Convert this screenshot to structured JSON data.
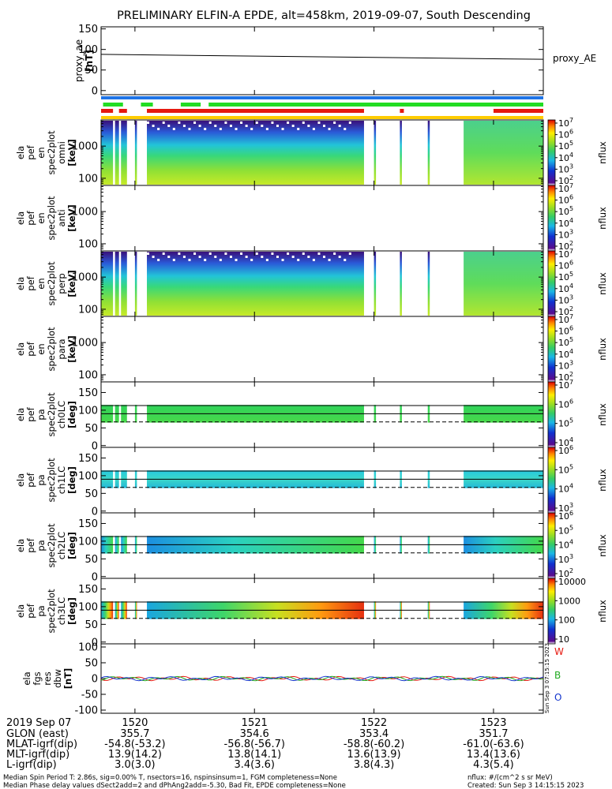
{
  "title": "PRELIMINARY ELFIN-A EPDE, alt=458km, 2019-09-07, South Descending",
  "colors": {
    "blue_bar": "#1f74e6",
    "green_bar": "#22dd22",
    "red_bar": "#e6180f",
    "yellow_bar": "#ffcc00"
  },
  "chart_data": [
    {
      "id": "proxy_ae",
      "type": "line",
      "ylabel": "proxy_ae [nT]",
      "legend": "proxy_AE",
      "ylim": [
        -10,
        155
      ],
      "yticks": [
        "150",
        "100",
        "50",
        "0"
      ],
      "x_time": [
        "19:43",
        "23:25"
      ],
      "y": [
        88,
        76
      ]
    },
    {
      "id": "status_bars",
      "type": "bar",
      "rows": [
        {
          "color": "blue",
          "segments": [
            [
              "19:43",
              "23:25"
            ]
          ]
        },
        {
          "color": "green",
          "segments": [
            [
              "19:44",
              "19:54"
            ],
            [
              "20:03",
              "20:09"
            ],
            [
              "20:23",
              "20:33"
            ],
            [
              "20:37",
              "23:25"
            ]
          ]
        },
        {
          "color": "red",
          "segments": [
            [
              "19:43",
              "19:49"
            ],
            [
              "19:52",
              "19:56"
            ],
            [
              "20:06",
              "21:55"
            ],
            [
              "22:13",
              "22:15"
            ],
            [
              "23:00",
              "23:25"
            ]
          ]
        },
        {
          "color": "yellow",
          "segments": [
            [
              "19:43",
              "23:25"
            ]
          ]
        }
      ]
    },
    {
      "id": "en_spec2plot_omni",
      "type": "heatmap",
      "ylabel": "ela pef en spec2plot omni [keV]",
      "yscale": "log",
      "ylim": [
        60,
        6500
      ],
      "yticks": [
        "1000",
        "100"
      ],
      "zlabel": "nflux",
      "zscale": "log",
      "zticks": [
        "10^7",
        "10^6",
        "10^5",
        "10^4",
        "10^3",
        "10^2"
      ],
      "zlim": [
        100,
        10000000
      ]
    },
    {
      "id": "en_spec2plot_anti",
      "type": "heatmap",
      "ylabel": "ela pef en spec2plot anti [keV]",
      "yscale": "log",
      "ylim": [
        60,
        6500
      ],
      "yticks": [
        "1000",
        "100"
      ],
      "zlabel": "nflux",
      "zticks": [
        "10^7",
        "10^6",
        "10^5",
        "10^4",
        "10^3",
        "10^2"
      ]
    },
    {
      "id": "en_spec2plot_perp",
      "type": "heatmap",
      "ylabel": "ela pef en spec2plot perp [keV]",
      "yscale": "log",
      "ylim": [
        60,
        6500
      ],
      "yticks": [
        "1000",
        "100"
      ],
      "zlabel": "nflux",
      "zticks": [
        "10^7",
        "10^6",
        "10^5",
        "10^4",
        "10^3",
        "10^2"
      ]
    },
    {
      "id": "en_spec2plot_para",
      "type": "heatmap",
      "ylabel": "ela pef en spec2plot para [keV]",
      "yscale": "log",
      "ylim": [
        60,
        6500
      ],
      "yticks": [
        "1000",
        "100"
      ],
      "zlabel": "nflux",
      "zticks": [
        "10^7",
        "10^6",
        "10^5",
        "10^4",
        "10^3",
        "10^2"
      ]
    },
    {
      "id": "pa_spec2plot_ch0LC",
      "type": "heatmap",
      "ylabel": "ela pef pa spec2plot ch0LC [deg]",
      "ylim": [
        -5,
        180
      ],
      "yticks": [
        "150",
        "100",
        "50",
        "0"
      ],
      "zlabel": "nflux",
      "zticks": [
        "10^7",
        "10^6",
        "10^5",
        "10^4"
      ],
      "band": [
        65,
        115
      ],
      "reference_lines": [
        113,
        90
      ],
      "dashed_line": 67
    },
    {
      "id": "pa_spec2plot_ch1LC",
      "type": "heatmap",
      "ylabel": "ela pef pa spec2plot ch1LC [deg]",
      "ylim": [
        -5,
        180
      ],
      "yticks": [
        "150",
        "100",
        "50",
        "0"
      ],
      "zlabel": "nflux",
      "zticks": [
        "10^6",
        "10^5",
        "10^4",
        "10^3"
      ],
      "band": [
        65,
        115
      ],
      "reference_lines": [
        113,
        90
      ],
      "dashed_line": 67
    },
    {
      "id": "pa_spec2plot_ch2LC",
      "type": "heatmap",
      "ylabel": "ela pef pa spec2plot ch2LC [deg]",
      "ylim": [
        -5,
        180
      ],
      "yticks": [
        "150",
        "100",
        "50",
        "0"
      ],
      "zlabel": "nflux",
      "zticks": [
        "10^6",
        "10^5",
        "10^4",
        "10^3",
        "10^2"
      ],
      "band": [
        65,
        115
      ],
      "reference_lines": [
        113,
        90
      ],
      "dashed_line": 67
    },
    {
      "id": "pa_spec2plot_ch3LC",
      "type": "heatmap",
      "ylabel": "ela pef pa spec2plot ch3LC [deg]",
      "ylim": [
        -5,
        180
      ],
      "yticks": [
        "150",
        "100",
        "50",
        "0"
      ],
      "zlabel": "nflux",
      "zticks": [
        "10000",
        "1000",
        "100",
        "10"
      ],
      "band": [
        65,
        115
      ],
      "reference_lines": [
        113,
        90
      ],
      "dashed_line": 67
    },
    {
      "id": "fgs_res_dbw",
      "type": "line",
      "ylabel": "ela fgs res dbw [nT]",
      "ylim": [
        -110,
        110
      ],
      "yticks": [
        "100",
        "50",
        "0",
        "-50",
        "-100"
      ],
      "legend": [
        "W",
        "B",
        "O"
      ],
      "series": [
        {
          "name": "W",
          "color": "#e6180f"
        },
        {
          "name": "B",
          "color": "#22aa22"
        },
        {
          "name": "O",
          "color": "#1133cc"
        }
      ]
    }
  ],
  "x_axis": {
    "date": "2019 Sep 07",
    "ticks": [
      {
        "t": "20:00",
        "label": "1520"
      },
      {
        "t": "21:00",
        "label": "1521"
      },
      {
        "t": "22:00",
        "label": "1522"
      },
      {
        "t": "23:00",
        "label": "1523"
      }
    ],
    "rows": [
      {
        "label": "GLON (east)",
        "values": [
          "355.7",
          "354.6",
          "353.4",
          "351.7"
        ]
      },
      {
        "label": "MLAT-igrf(dip)",
        "values": [
          "-54.8(-53.2)",
          "-56.8(-56.7)",
          "-58.8(-60.2)",
          "-61.0(-63.6)"
        ]
      },
      {
        "label": "MLT-igrf(dip)",
        "values": [
          "13.9(14.2)",
          "13.8(14.1)",
          "13.6(13.9)",
          "13.4(13.6)"
        ]
      },
      {
        "label": "L-igrf(dip)",
        "values": [
          "3.0(3.0)",
          "3.4(3.6)",
          "3.8(4.3)",
          "4.3(5.4)"
        ]
      }
    ]
  },
  "side_stamp": "Sun Sep  3 07:15:15 2023",
  "footer": {
    "line1": "Median Spin Period T: 2.86s, sig=0.00% T, nsectors=16, nspinsinsum=1, FGM completeness=None",
    "line2": "Median Phase delay values dSect2add=2 and dPhAng2add=-5.30, Bad Fit, EPDE completeness=None",
    "right1": "nflux: #/(cm^2 s sr MeV)",
    "right2": "Created: Sun Sep  3 14:15:15 2023"
  }
}
